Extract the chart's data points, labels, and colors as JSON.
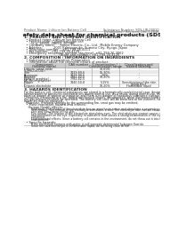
{
  "title": "Safety data sheet for chemical products (SDS)",
  "header_left": "Product Name: Lithium Ion Battery Cell",
  "header_right_line1": "Substance Number: SDS-LIB-00010",
  "header_right_line2": "Established / Revision: Dec.7.2016",
  "section1_title": "1. PRODUCT AND COMPANY IDENTIFICATION",
  "section1_lines": [
    "  • Product name: Lithium Ion Battery Cell",
    "  • Product code: Cylindrical-type cell",
    "       (e.g. 18650, 26650, 26700)",
    "  • Company name:     Sanyo Electric, Co., Ltd.  Mobile Energy Company",
    "  • Address:           2001 Kamimaruko, Sumoto City, Hyogo, Japan",
    "  • Telephone number:   +81-799-26-4111",
    "  • Fax number:   +81-799-26-4120",
    "  • Emergency telephone number (daytime): +81-799-26-3062",
    "                                   (Night and holiday): +81-799-26-4120"
  ],
  "section2_title": "2. COMPOSITION / INFORMATION ON INGREDIENTS",
  "section2_intro": "  • Substance or preparation: Preparation",
  "section2_sub": "  • Information about the chemical nature of product:",
  "table_rows": [
    [
      "Lithium cobalt oxide\n(LiMn₂CoO₂(4))",
      "-",
      "30-60%",
      "-"
    ],
    [
      "Iron",
      "7439-89-6",
      "15-30%",
      "-"
    ],
    [
      "Aluminum",
      "7429-90-5",
      "2-6%",
      "-"
    ],
    [
      "Graphite\n(Bind in graphite)\n(AI-Mn in graphite)",
      "7782-42-5\n7782-42-5",
      "10-20%",
      "-"
    ],
    [
      "Copper",
      "7440-50-8",
      "5-15%",
      "Sensitization of the skin\ngroup No.2"
    ],
    [
      "Organic electrolyte",
      "-",
      "10-20%",
      "Flammable liquid"
    ]
  ],
  "section3_title": "3. HAZARDS IDENTIFICATION",
  "section3_para1": "For the battery cell, chemical substances are stored in a hermetically-sealed metal case, designed to withstand",
  "section3_para2": "temperatures or pressures-concentrations during normal use. As a result, during normal use, there is no",
  "section3_para3": "physical danger of ignition or explosion and there is no danger of hazardous substance leakage.",
  "section3_para4": "  However, if exposed to a fire, added mechanical shocks, decomposed, when electromechanical stress may cause,",
  "section3_para5": "the gas release venthole be operated. The battery cell case will be breached at fire extreme, hazardous",
  "section3_para6": "materials may be released.",
  "section3_para7": "  Moreover, if heated strongly by the surrounding fire, smut gas may be emitted.",
  "section3_bullet1": "  • Most important hazard and effects:",
  "section3_human": "    Human health effects:",
  "section3_human_lines": [
    "        Inhalation: The release of the electrolyte has an anesthesia action and stimulates a respiratory tract.",
    "        Skin contact: The release of the electrolyte stimulates a skin. The electrolyte skin contact causes a",
    "        sore and stimulation on the skin.",
    "        Eye contact: The release of the electrolyte stimulates eyes. The electrolyte eye contact causes a sore",
    "        and stimulation on the eye. Especially, a substance that causes a strong inflammation of the eye is",
    "        contained.",
    "        Environmental effects: Since a battery cell remains in the environment, do not throw out it into the",
    "        environment."
  ],
  "section3_bullet2": "  • Specific hazards:",
  "section3_specific": [
    "        If the electrolyte contacts with water, it will generate detrimental hydrogen fluoride.",
    "        Since the said electrolyte is inflammable liquid, do not bring close to fire."
  ],
  "bg_color": "#ffffff",
  "text_color": "#222222",
  "header_color": "#555555",
  "line_color": "#aaaaaa",
  "table_border_color": "#999999",
  "table_header_bg": "#cccccc"
}
